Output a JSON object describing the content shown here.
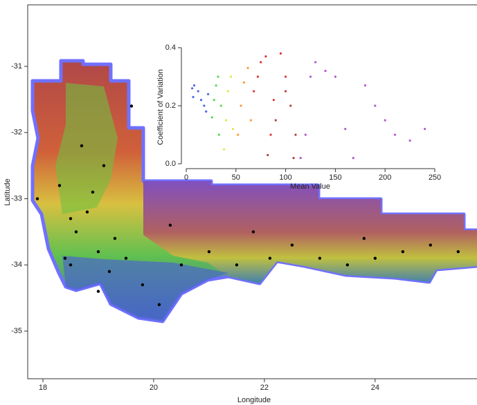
{
  "chart_data": [
    {
      "type": "map",
      "x_label": "Longitude",
      "y_label": "Latitude",
      "xlim": [
        17.725,
        25.84
      ],
      "ylim": [
        -35.72,
        -30.07
      ],
      "xticks": [
        18,
        20,
        22,
        24
      ],
      "yticks": [
        -31,
        -32,
        -33,
        -34,
        -35
      ],
      "series": [
        {
          "color": "#000000",
          "x": [
            18.4,
            18.5,
            18.6,
            18.8,
            19.0,
            19.2,
            18.9,
            19.1,
            18.7,
            19.3,
            19.5,
            19.8,
            20.1,
            20.5,
            21.0,
            21.5,
            22.1,
            22.5,
            23.0,
            23.5,
            24.0,
            24.5,
            25.0,
            25.5,
            18.3,
            17.9,
            19.6,
            20.3,
            21.8,
            23.8,
            18.5,
            19.0
          ],
          "values": [
            -33.9,
            -34.0,
            -33.5,
            -33.2,
            -33.8,
            -34.1,
            -32.9,
            -32.5,
            -32.2,
            -33.6,
            -33.9,
            -34.3,
            -34.6,
            -34.0,
            -33.8,
            -34.0,
            -33.9,
            -33.7,
            -33.9,
            -34.0,
            -33.9,
            -33.8,
            -33.7,
            -33.8,
            -32.8,
            -33.0,
            -31.6,
            -33.4,
            -33.5,
            -33.6,
            -33.3,
            -34.4
          ]
        }
      ]
    },
    {
      "type": "scatter",
      "x_label": "Mean Value",
      "y_label": "Coefficient of Variation",
      "xlim": [
        0,
        250
      ],
      "ylim": [
        0,
        0.4
      ],
      "xticks": [
        0,
        50,
        100,
        150,
        200,
        250
      ],
      "yticks": [
        {
          "value": 0,
          "label": "0.0"
        },
        {
          "value": 0.2,
          "label": "0.2"
        },
        {
          "value": 0.4,
          "label": "0.4"
        }
      ],
      "series": [
        {
          "color": "#2040e0",
          "x": [
            6,
            7,
            8,
            12,
            15,
            18,
            20,
            22
          ],
          "values": [
            0.26,
            0.23,
            0.27,
            0.25,
            0.22,
            0.2,
            0.18,
            0.24
          ]
        },
        {
          "color": "#30d030",
          "x": [
            26,
            28,
            30,
            32,
            35,
            33
          ],
          "values": [
            0.16,
            0.22,
            0.27,
            0.3,
            0.2,
            0.1
          ]
        },
        {
          "color": "#e0e020",
          "x": [
            38,
            40,
            42,
            45,
            47
          ],
          "values": [
            0.05,
            0.15,
            0.25,
            0.3,
            0.12
          ]
        },
        {
          "color": "#ff8000",
          "x": [
            52,
            55,
            58,
            62,
            65
          ],
          "values": [
            0.1,
            0.2,
            0.28,
            0.33,
            0.15
          ]
        },
        {
          "color": "#e00000",
          "x": [
            68,
            72,
            75,
            80,
            85,
            88,
            95,
            100
          ],
          "values": [
            0.25,
            0.3,
            0.35,
            0.37,
            0.1,
            0.22,
            0.38,
            0.3
          ]
        },
        {
          "color": "#a01010",
          "x": [
            82,
            90,
            100,
            105,
            108,
            110
          ],
          "values": [
            0.03,
            0.15,
            0.25,
            0.2,
            0.02,
            0.1
          ]
        },
        {
          "color": "#a030c0",
          "x": [
            115,
            120,
            125,
            130,
            140,
            150,
            160,
            168,
            180,
            190,
            200,
            210,
            225,
            240
          ],
          "values": [
            0.02,
            0.1,
            0.3,
            0.35,
            0.32,
            0.3,
            0.12,
            0.02,
            0.27,
            0.2,
            0.15,
            0.1,
            0.08,
            0.12
          ]
        }
      ]
    }
  ]
}
